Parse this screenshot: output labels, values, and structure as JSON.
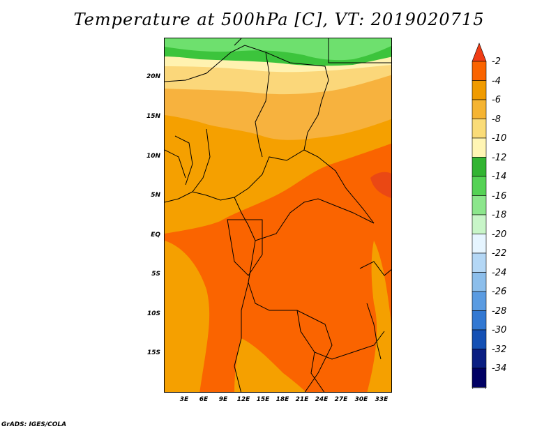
{
  "title": "Temperature at 500hPa [C], VT: 2019020715",
  "credit": "GrADS: IGES/COLA",
  "y_labels": [
    "20N",
    "15N",
    "10N",
    "5N",
    "EQ",
    "5S",
    "10S",
    "15S"
  ],
  "x_labels": [
    "3E",
    "6E",
    "9E",
    "12E",
    "15E",
    "18E",
    "21E",
    "24E",
    "27E",
    "30E",
    "33E"
  ],
  "colorbar": {
    "labels": [
      "-2",
      "-4",
      "-6",
      "-8",
      "-10",
      "-12",
      "-14",
      "-16",
      "-18",
      "-20",
      "-22",
      "-24",
      "-26",
      "-28",
      "-30",
      "-32",
      "-34"
    ],
    "colors": [
      "#f03c14",
      "#fa6400",
      "#f09b00",
      "#f5b432",
      "#fadc78",
      "#fff5b4",
      "#32b432",
      "#55d255",
      "#8ce68c",
      "#c8f5c8",
      "#e6f5ff",
      "#b4d7f5",
      "#8cbeeb",
      "#5a9be1",
      "#3278d2",
      "#1450b4",
      "#0a1e82",
      "#000064",
      "#dde0f0"
    ]
  },
  "map_colors": {
    "c_m2_m4": "#ea4814",
    "c_m4_m6": "#fa6400",
    "c_m6_m8": "#f5a000",
    "c_m8_m10": "#f7b23e",
    "c_m10_m12": "#fbd77a",
    "c_m12_m14": "#fff2b0",
    "c_m14_m16": "#3cc43c",
    "c_m16_m18": "#6ee06e"
  }
}
